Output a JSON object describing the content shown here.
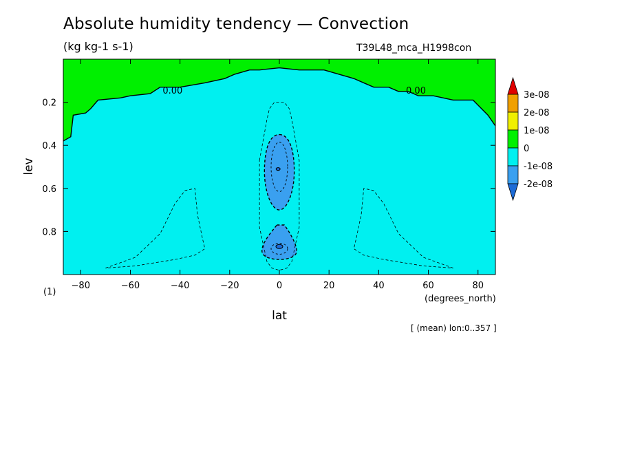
{
  "title": "Absolute humidity tendency — Convection",
  "units": "(kg kg-1 s-1)",
  "run_id": "T39L48_mca_H1998con",
  "footnote": "[ (mean) lon:0..357 ]",
  "chart_data": {
    "type": "heatmap",
    "xlabel": "lat",
    "xunits": "(degrees_north)",
    "ylabel": "lev",
    "yunits": "(1)",
    "xlim": [
      -87,
      87
    ],
    "ylim": [
      1.0,
      0.0
    ],
    "y_reversed": true,
    "xticks": [
      -80,
      -60,
      -40,
      -20,
      0,
      20,
      40,
      60,
      80
    ],
    "yticks": [
      0.2,
      0.4,
      0.6,
      0.8
    ],
    "colorbar": {
      "labels": [
        "3e-08",
        "2e-08",
        "1e-08",
        "0",
        "-1e-08",
        "-2e-08"
      ],
      "levels": [
        -3e-08,
        -2e-08,
        -1e-08,
        0,
        1e-08,
        2e-08,
        3e-08
      ],
      "colors": [
        "#1d6bd6",
        "#3aa0f0",
        "#00f0f0",
        "#00f000",
        "#f0f000",
        "#f0a000",
        "#e00000"
      ]
    },
    "zero_contour_label": "0.00",
    "zero_contour": {
      "lat": [
        -87,
        -84,
        -83,
        -78,
        -76,
        -73,
        -64,
        -60,
        -52,
        -48,
        -40,
        -35,
        -30,
        -26,
        -22,
        -18,
        -12,
        -8,
        0,
        8,
        14,
        18,
        24,
        30,
        34,
        38,
        44,
        48,
        52,
        56,
        62,
        66,
        70,
        78,
        84,
        87
      ],
      "lev": [
        0.38,
        0.36,
        0.26,
        0.25,
        0.23,
        0.19,
        0.18,
        0.17,
        0.16,
        0.13,
        0.13,
        0.12,
        0.11,
        0.1,
        0.09,
        0.07,
        0.05,
        0.05,
        0.04,
        0.05,
        0.05,
        0.05,
        0.07,
        0.09,
        0.11,
        0.13,
        0.13,
        0.15,
        0.15,
        0.17,
        0.17,
        0.18,
        0.19,
        0.19,
        0.26,
        0.31
      ]
    },
    "minimum_regions": [
      {
        "center_lat": 0,
        "center_lev": 0.51,
        "level": -1e-08
      },
      {
        "center_lat": 0,
        "center_lev": 0.87,
        "level": -1e-08
      }
    ],
    "dashed_contours": [
      {
        "lat": [
          -8,
          -5,
          -4,
          -2,
          0,
          2,
          4,
          5,
          8,
          8,
          5,
          3,
          0,
          -3,
          -5,
          -8
        ],
        "lev": [
          0.47,
          0.28,
          0.23,
          0.2,
          0.2,
          0.2,
          0.23,
          0.28,
          0.47,
          0.78,
          0.94,
          0.97,
          0.98,
          0.97,
          0.94,
          0.78
        ]
      },
      {
        "lat": [
          -70,
          -58,
          -48,
          -42,
          -38,
          -34,
          -33,
          -31,
          -30,
          -34,
          -42,
          -58
        ],
        "lev": [
          0.97,
          0.92,
          0.81,
          0.67,
          0.61,
          0.6,
          0.72,
          0.83,
          0.88,
          0.91,
          0.93,
          0.96
        ]
      },
      {
        "lat": [
          70,
          58,
          48,
          42,
          38,
          34,
          33,
          31,
          30,
          34,
          42,
          58
        ],
        "lev": [
          0.97,
          0.92,
          0.81,
          0.67,
          0.61,
          0.6,
          0.72,
          0.83,
          0.88,
          0.91,
          0.93,
          0.96
        ]
      }
    ]
  }
}
